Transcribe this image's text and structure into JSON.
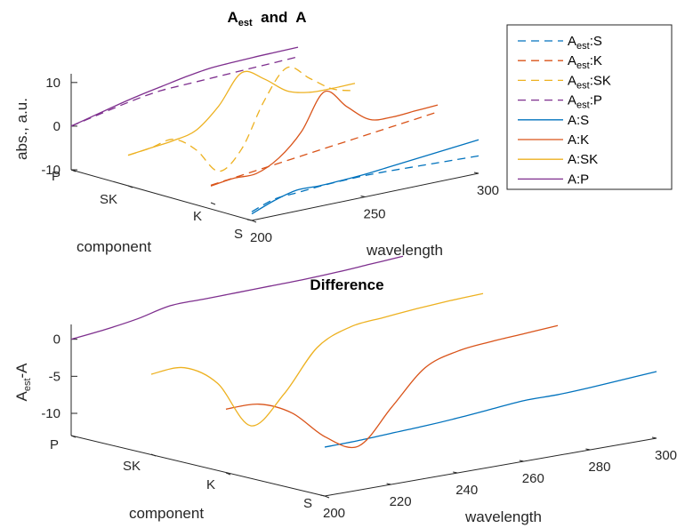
{
  "chart_data": [
    {
      "type": "line",
      "title": "Aest and A",
      "xlabel": "wavelength",
      "ylabel": "component",
      "zlabel": "abs., a.u.",
      "xlim": [
        200,
        300
      ],
      "zlim": [
        -10,
        12
      ],
      "x_ticks": [
        "200",
        "250",
        "300"
      ],
      "y_categories": [
        "S",
        "K",
        "SK",
        "P"
      ],
      "z_ticks": [
        "-10",
        "0",
        "10"
      ],
      "x": [
        200,
        210,
        220,
        230,
        240,
        250,
        260,
        270,
        280,
        290,
        300
      ],
      "series": [
        {
          "name": "Aest:S",
          "component": "S",
          "style": "dashed",
          "color": "#0072BD",
          "values": [
            -8,
            -6.2,
            -5.8,
            -5.4,
            -5.2,
            -5.1,
            -5.2,
            -5.4,
            -5.6,
            -5.8,
            -6
          ]
        },
        {
          "name": "Aest:K",
          "component": "K",
          "style": "dashed",
          "color": "#D95319",
          "values": [
            -6,
            -5.4,
            -4.8,
            -4.2,
            -3.6,
            -3,
            -2.4,
            -1.8,
            -1.2,
            -0.6,
            0
          ]
        },
        {
          "name": "Aest:SK",
          "component": "SK",
          "style": "dashed",
          "color": "#EDB120",
          "values": [
            -3,
            -2.4,
            -1.5,
            -5,
            -11,
            -7,
            3,
            9.5,
            6,
            2.5,
            1
          ]
        },
        {
          "name": "Aest:P",
          "component": "P",
          "style": "dashed",
          "color": "#7E2F8E",
          "values": [
            0,
            1.1,
            2.2,
            3.2,
            3.9,
            4.1,
            4.3,
            4.5,
            4.7,
            4.9,
            5.1
          ]
        },
        {
          "name": "A:S",
          "component": "S",
          "style": "solid",
          "color": "#0072BD",
          "values": [
            -8.5,
            -6.5,
            -5.2,
            -5.3,
            -5.1,
            -4.8,
            -4.3,
            -3.8,
            -3.3,
            -2.8,
            -2.3
          ]
        },
        {
          "name": "A:K",
          "component": "K",
          "style": "solid",
          "color": "#D95319",
          "values": [
            -6.2,
            -5.5,
            -5.5,
            -3,
            2,
            10,
            5.5,
            1.5,
            1,
            1.3,
            1.6
          ]
        },
        {
          "name": "A:SK",
          "component": "SK",
          "style": "solid",
          "color": "#EDB120",
          "values": [
            -3,
            -2.4,
            -1.8,
            -0.5,
            4,
            10.5,
            8,
            4.2,
            2.8,
            2.6,
            2.7
          ]
        },
        {
          "name": "A:P",
          "component": "P",
          "style": "solid",
          "color": "#7E2F8E",
          "values": [
            0,
            1.3,
            2.6,
            3.8,
            4.8,
            5.8,
            6.6,
            6.9,
            7.1,
            7.2,
            7.3
          ]
        }
      ]
    },
    {
      "type": "line",
      "title": "Difference",
      "xlabel": "wavelength",
      "ylabel": "component",
      "zlabel": "Aest-A",
      "xlim": [
        200,
        300
      ],
      "zlim": [
        -13,
        2
      ],
      "x_ticks": [
        "200",
        "220",
        "240",
        "260",
        "280",
        "300"
      ],
      "y_categories": [
        "S",
        "K",
        "SK",
        "P"
      ],
      "z_ticks": [
        "-10",
        "-5",
        "0"
      ],
      "x": [
        200,
        210,
        220,
        230,
        240,
        250,
        260,
        270,
        280,
        290,
        300
      ],
      "series": [
        {
          "component": "S",
          "color": "#0072BD",
          "values": [
            -6.4,
            -6.3,
            -6.1,
            -5.9,
            -5.6,
            -5.2,
            -4.8,
            -4.8,
            -4.6,
            -4.3,
            -4
          ]
        },
        {
          "component": "K",
          "color": "#D95319",
          "values": [
            -4.4,
            -4.5,
            -6.5,
            -10.5,
            -12.5,
            -8,
            -3.5,
            -2,
            -1.5,
            -1.2,
            -0.9
          ]
        },
        {
          "component": "SK",
          "color": "#EDB120",
          "values": [
            -2.2,
            -2.1,
            -5,
            -11.5,
            -8,
            -2.5,
            -0.5,
            0,
            0.4,
            0.7,
            0.9
          ]
        },
        {
          "component": "P",
          "color": "#7E2F8E",
          "values": [
            0,
            0.5,
            1.2,
            2.2,
            2.3,
            2.4,
            2.5,
            2.6,
            2.8,
            3.1,
            3.4
          ]
        }
      ]
    }
  ]
}
